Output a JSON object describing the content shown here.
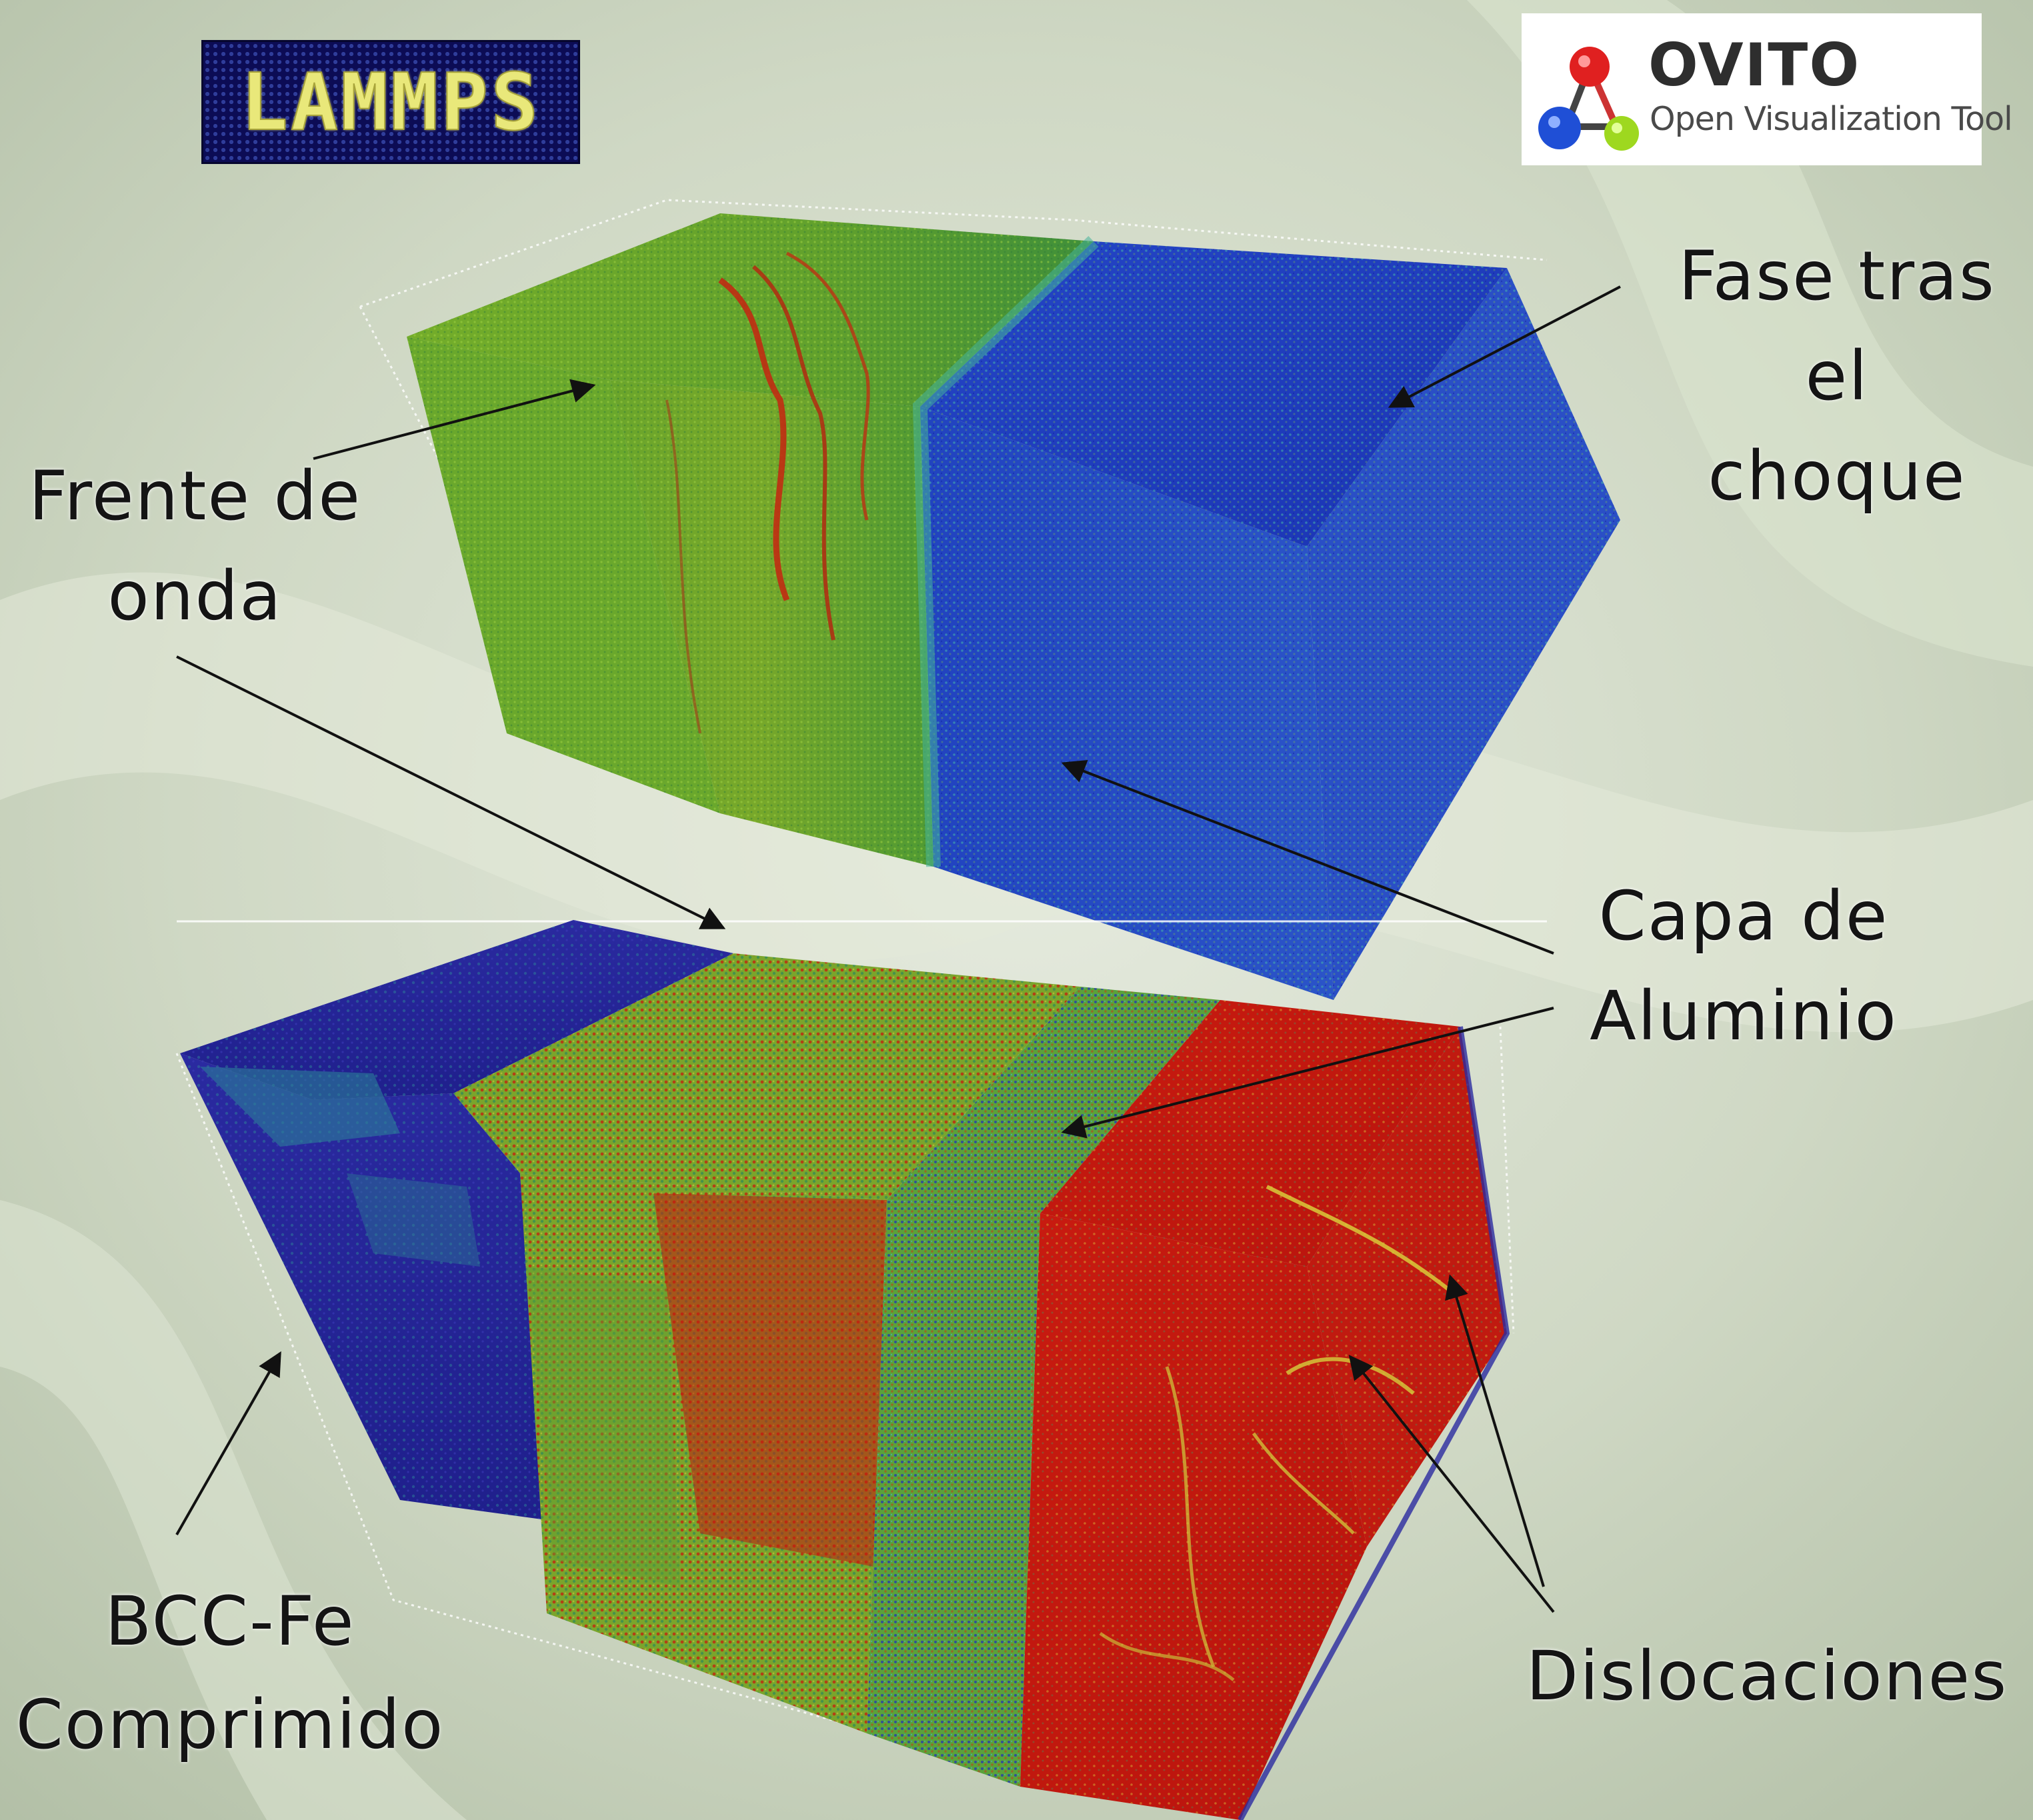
{
  "logos": {
    "lammps": "LAMMPS",
    "ovito_title": "OVITO",
    "ovito_subtitle": "Open Visualization Tool"
  },
  "annotations": {
    "fase_tras_choque": [
      "Fase tras el",
      "choque"
    ],
    "frente_de_onda": [
      "Frente de",
      "onda"
    ],
    "capa_de_aluminio": [
      "Capa de",
      "Aluminio"
    ],
    "bcc_fe": [
      "BCC-Fe",
      "Comprimido"
    ],
    "dislocaciones": [
      "Dislocaciones"
    ]
  },
  "colors": {
    "background": "#c9d3bf",
    "green_phase": "#6fa82a",
    "blue_phase": "#1f3cc4",
    "red_phase": "#c4160f",
    "dark_blue": "#25239a",
    "arrow": "#111111"
  }
}
